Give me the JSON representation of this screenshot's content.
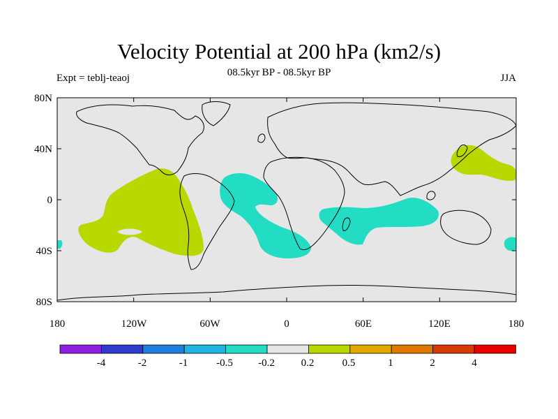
{
  "title": "Velocity Potential at 200 hPa (km2/s)",
  "subtitle": "08.5kyr BP - 08.5kyr BP",
  "left_label": "Expt = teblj-teaoj",
  "right_label": "JJA",
  "axes": {
    "lat_ticks": [
      "80N",
      "40N",
      "0",
      "40S",
      "80S"
    ],
    "lon_ticks": [
      "180",
      "120W",
      "60W",
      "0",
      "60E",
      "120E",
      "180"
    ]
  },
  "colorbar": {
    "colors": [
      "#8c1ee0",
      "#2e3bd1",
      "#1f7fe0",
      "#1fb4e0",
      "#22dcc4",
      "#e6e6e6",
      "#b8d800",
      "#e0a800",
      "#e07800",
      "#d83a00",
      "#e80000"
    ],
    "labels": [
      "-4",
      "-2",
      "-1",
      "-0.5",
      "-0.2",
      "0.2",
      "0.5",
      "1",
      "2",
      "4"
    ]
  },
  "colors": {
    "background_field": "#e6e6e6",
    "positive_anomaly": "#b8d800",
    "negative_anomaly": "#22dcc4"
  }
}
